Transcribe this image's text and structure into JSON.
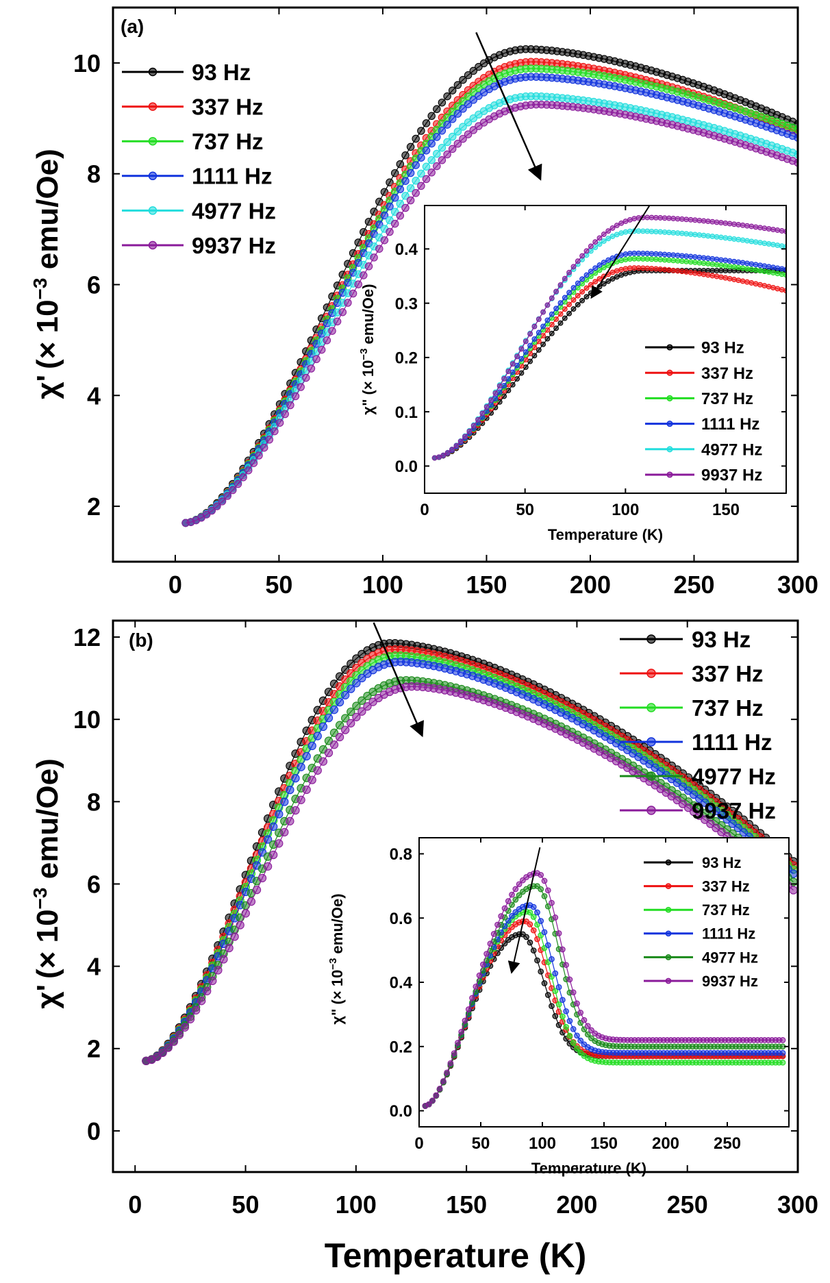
{
  "figure": {
    "xlabel": "Temperature (K)",
    "main_ylabel_prefix": "χ",
    "main_ylabel_prime": "'",
    "main_ylabel_paren_open": "(× 10",
    "main_ylabel_exp": "−3",
    "main_ylabel_unit": " emu/Oe)",
    "inset_ylabel_prefix": "χ",
    "inset_ylabel_prime": "\"",
    "inset_ylabel_paren_open": "(× 10",
    "inset_ylabel_exp": "−3",
    "inset_ylabel_unit": " emu/Oe)",
    "inset_xlabel": "Temperature (K)"
  },
  "legend_labels": [
    "93 Hz",
    "337 Hz",
    "737 Hz",
    "1111 Hz",
    "4977 Hz",
    "9937 Hz"
  ],
  "chart_data": [
    {
      "id": "a_main",
      "panel_label": "(a)",
      "type": "scatter",
      "xlabel": "Temperature (K)",
      "ylabel": "χ' (× 10^-3 emu/Oe)",
      "xlim": [
        -30,
        300
      ],
      "ylim": [
        1,
        11
      ],
      "xticks": [
        0,
        50,
        100,
        150,
        200,
        250,
        300
      ],
      "yticks": [
        2,
        4,
        6,
        8,
        10
      ],
      "legend_position": "top-left",
      "params": {
        "tStart": 5,
        "tEnd": 300,
        "y0": 1.7,
        "x_hump": 155,
        "slope": 0.057,
        "w1": 54,
        "w2": 250,
        "m0": 0,
        "mslope": 0,
        "mcenter": 100,
        "mwidth": 10,
        "yfloor": 0
      },
      "series": [
        {
          "name": "93 Hz",
          "color": "#000000",
          "peak_T": 170,
          "peak": 10.25,
          "end_value": 8.9
        },
        {
          "name": "337 Hz",
          "color": "#ee1111",
          "peak_T": 172,
          "peak": 10.02,
          "end_value": 8.75
        },
        {
          "name": "737 Hz",
          "color": "#22dd22",
          "peak_T": 172,
          "peak": 9.9,
          "end_value": 8.8
        },
        {
          "name": "1111 Hz",
          "color": "#1133dd",
          "peak_T": 172,
          "peak": 9.75,
          "end_value": 8.65
        },
        {
          "name": "4977 Hz",
          "color": "#22dddd",
          "peak_T": 172,
          "peak": 9.4,
          "end_value": 8.35
        },
        {
          "name": "9937 Hz",
          "color": "#8a1a9a",
          "peak_T": 175,
          "peak": 9.25,
          "end_value": 8.2
        }
      ],
      "arrow": {
        "from": [
          145,
          10.55
        ],
        "to": [
          176,
          7.9
        ]
      }
    },
    {
      "id": "a_inset",
      "type": "scatter",
      "xlabel": "Temperature (K)",
      "ylabel": "χ\" (× 10^-3 emu/Oe)",
      "xlim": [
        0,
        180
      ],
      "ylim": [
        -0.05,
        0.48
      ],
      "xticks": [
        0,
        50,
        100,
        150
      ],
      "yticks": [
        0.0,
        0.1,
        0.2,
        0.3,
        0.4
      ],
      "legend_position": "lower-right",
      "params": {
        "tStart": 5,
        "tEnd": 180,
        "y0": 0.015,
        "x_hump": 22,
        "slope": 0.0058,
        "w1": 22,
        "w2": 180,
        "m0": 0,
        "mslope": 0,
        "mcenter": 50,
        "mwidth": 10,
        "yfloor": 0
      },
      "series": [
        {
          "name": "93 Hz",
          "color": "#000000",
          "peak_T": 110,
          "peak": 0.36,
          "end_value": 0.36
        },
        {
          "name": "337 Hz",
          "color": "#ee1111",
          "peak_T": 105,
          "peak": 0.365,
          "end_value": 0.323
        },
        {
          "name": "737 Hz",
          "color": "#22dd22",
          "peak_T": 105,
          "peak": 0.382,
          "end_value": 0.352
        },
        {
          "name": "1111 Hz",
          "color": "#1133dd",
          "peak_T": 105,
          "peak": 0.392,
          "end_value": 0.362
        },
        {
          "name": "4977 Hz",
          "color": "#22dddd",
          "peak_T": 105,
          "peak": 0.433,
          "end_value": 0.404
        },
        {
          "name": "9937 Hz",
          "color": "#8a1a9a",
          "peak_T": 110,
          "peak": 0.458,
          "end_value": 0.432
        }
      ],
      "arrow": {
        "from": [
          112,
          0.48
        ],
        "to": [
          83,
          0.31
        ]
      }
    },
    {
      "id": "b_main",
      "panel_label": "(b)",
      "type": "scatter",
      "xlabel": "Temperature (K)",
      "ylabel": "χ' (× 10^-3 emu/Oe)",
      "xlim": [
        -10,
        300
      ],
      "ylim": [
        -1,
        12.4
      ],
      "xticks": [
        0,
        50,
        100,
        150,
        200,
        250,
        300
      ],
      "yticks": [
        0,
        2,
        4,
        6,
        8,
        10,
        12
      ],
      "legend_position": "top-right",
      "params": {
        "tStart": 5,
        "tEnd": 298,
        "y0": 1.7,
        "x_hump": 15,
        "slope": 0.025,
        "w1": 45,
        "w2": 75,
        "m0": 0,
        "mslope": 0,
        "mcenter": 50,
        "mwidth": 10,
        "yfloor": 0
      },
      "series": [
        {
          "name": "93 Hz",
          "color": "#000000",
          "peak_T": 116,
          "peak": 11.85,
          "end_value": 6.55
        },
        {
          "name": "337 Hz",
          "color": "#ee1111",
          "peak_T": 118,
          "peak": 11.7,
          "end_value": 6.45
        },
        {
          "name": "737 Hz",
          "color": "#22dd22",
          "peak_T": 119,
          "peak": 11.55,
          "end_value": 6.35
        },
        {
          "name": "1111 Hz",
          "color": "#1133dd",
          "peak_T": 120,
          "peak": 11.4,
          "end_value": 6.25
        },
        {
          "name": "4977 Hz",
          "color": "#1a8a1a",
          "peak_T": 123,
          "peak": 10.95,
          "end_value": 6.05
        },
        {
          "name": "9937 Hz",
          "color": "#8a1a9a",
          "peak_T": 126,
          "peak": 10.8,
          "end_value": 5.85
        }
      ],
      "arrow": {
        "from": [
          108,
          12.35
        ],
        "to": [
          130,
          9.6
        ]
      }
    },
    {
      "id": "b_inset",
      "type": "scatter",
      "xlabel": "Temperature (K)",
      "ylabel": "χ\" (× 10^-3 emu/Oe)",
      "xlim": [
        0,
        300
      ],
      "ylim": [
        -0.05,
        0.85
      ],
      "xticks": [
        0,
        50,
        100,
        150,
        200,
        250
      ],
      "yticks": [
        0.0,
        0.2,
        0.4,
        0.6,
        0.8
      ],
      "legend_position": "top-right",
      "params": {
        "tStart": 5,
        "tEnd": 295,
        "y0": 0.015,
        "x_hump": 20,
        "slope": 0.0035,
        "w1": 28,
        "w2": 26,
        "m0": 0.18,
        "mslope": 8e-05,
        "mcenter": 150,
        "mwidth": 14,
        "yfloor": 0.17
      },
      "series": [
        {
          "name": "93 Hz",
          "color": "#000000",
          "peak_T": 83,
          "peak": 0.55,
          "end_value": 0.17
        },
        {
          "name": "337 Hz",
          "color": "#ee1111",
          "peak_T": 86,
          "peak": 0.59,
          "end_value": 0.17
        },
        {
          "name": "737 Hz",
          "color": "#22dd22",
          "peak_T": 88,
          "peak": 0.62,
          "end_value": 0.15
        },
        {
          "name": "1111 Hz",
          "color": "#1133dd",
          "peak_T": 90,
          "peak": 0.64,
          "end_value": 0.18
        },
        {
          "name": "4977 Hz",
          "color": "#1a8a1a",
          "peak_T": 95,
          "peak": 0.7,
          "end_value": 0.2
        },
        {
          "name": "9937 Hz",
          "color": "#8a1a9a",
          "peak_T": 96,
          "peak": 0.74,
          "end_value": 0.22
        }
      ],
      "arrow": {
        "from": [
          98,
          0.82
        ],
        "to": [
          75,
          0.43
        ]
      }
    }
  ]
}
